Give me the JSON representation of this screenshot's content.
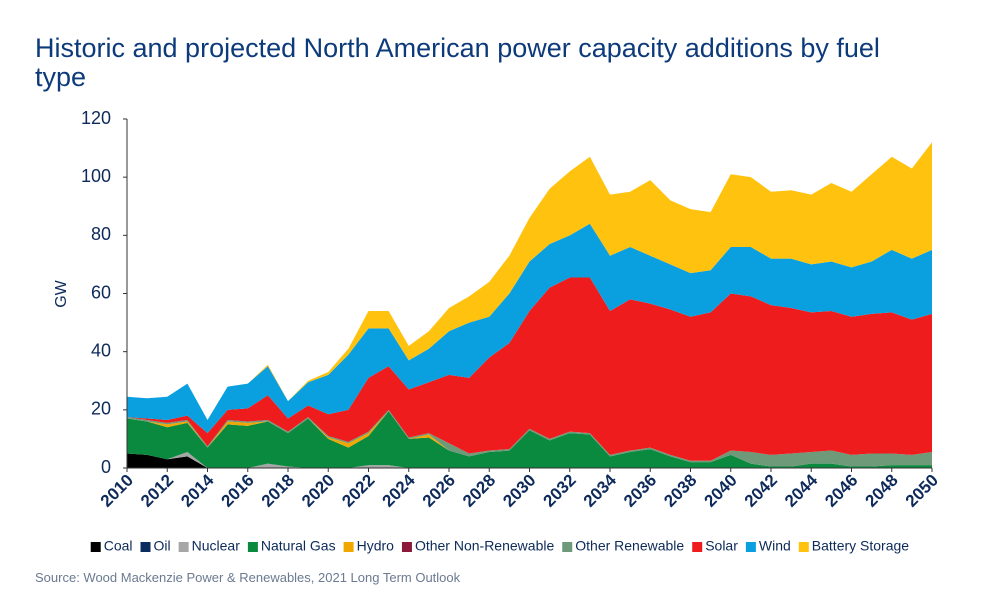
{
  "chart_data": {
    "type": "area",
    "title": "Historic and projected North American power capacity additions by fuel type",
    "y_label": "GW",
    "source": "Source: Wood Mackenzie Power & Renewables, 2021 Long Term Outlook",
    "stacked": true,
    "legend": "bottom",
    "grid": false,
    "x": [
      2010,
      2011,
      2012,
      2013,
      2014,
      2015,
      2016,
      2017,
      2018,
      2019,
      2020,
      2021,
      2022,
      2023,
      2024,
      2025,
      2026,
      2027,
      2028,
      2029,
      2030,
      2031,
      2032,
      2033,
      2034,
      2035,
      2036,
      2037,
      2038,
      2039,
      2040,
      2041,
      2042,
      2043,
      2044,
      2045,
      2046,
      2047,
      2048,
      2049,
      2050
    ],
    "xlim": [
      2010,
      2050
    ],
    "xticks": [
      2010,
      2012,
      2014,
      2016,
      2018,
      2020,
      2022,
      2024,
      2026,
      2028,
      2030,
      2032,
      2034,
      2036,
      2038,
      2040,
      2042,
      2044,
      2046,
      2048,
      2050
    ],
    "ylim": [
      0,
      120
    ],
    "yticks": [
      0,
      20,
      40,
      60,
      80,
      100,
      120
    ],
    "series": [
      {
        "name": "Coal",
        "color": "#000000",
        "values": [
          5,
          4.5,
          3,
          4,
          0,
          0,
          0,
          0,
          0,
          0,
          0,
          0,
          0,
          0,
          0,
          0,
          0,
          0,
          0,
          0,
          0,
          0,
          0,
          0,
          0,
          0,
          0,
          0,
          0,
          0,
          0,
          0,
          0,
          0,
          0,
          0,
          0,
          0,
          0,
          0,
          0
        ]
      },
      {
        "name": "Oil",
        "color": "#0b2c5f",
        "values": [
          0,
          0,
          0,
          0,
          0,
          0,
          0,
          0,
          0,
          0,
          0,
          0,
          0,
          0,
          0,
          0,
          0,
          0,
          0,
          0,
          0,
          0,
          0,
          0,
          0,
          0,
          0,
          0,
          0,
          0,
          0,
          0,
          0,
          0,
          0,
          0,
          0,
          0,
          0,
          0,
          0
        ]
      },
      {
        "name": "Nuclear",
        "color": "#a6a6a6",
        "values": [
          0,
          0,
          0,
          1.5,
          0,
          0,
          0,
          1.5,
          0.5,
          0,
          0,
          0,
          1,
          1,
          0,
          0,
          0,
          0,
          0,
          0,
          0,
          0,
          0,
          0,
          0,
          0,
          0,
          0,
          0,
          0,
          0,
          0,
          0,
          0,
          0,
          0,
          0,
          0,
          0,
          0,
          0
        ]
      },
      {
        "name": "Natural Gas",
        "color": "#0a8a3e",
        "values": [
          12,
          11.5,
          11,
          10,
          7,
          15,
          14.5,
          14.5,
          11.5,
          17,
          10,
          7,
          10,
          18.5,
          10,
          10.5,
          6,
          4,
          5.5,
          6,
          13,
          9.5,
          12,
          11.5,
          4,
          5.5,
          6.5,
          4,
          2,
          2,
          4.5,
          1.5,
          0.5,
          0.5,
          1.5,
          1.5,
          0.5,
          0.5,
          1,
          1,
          1
        ]
      },
      {
        "name": "Hydro",
        "color": "#f0a800",
        "values": [
          0,
          0,
          1,
          0.5,
          0,
          1,
          1,
          0,
          0,
          0,
          0.5,
          1.5,
          1,
          0,
          0,
          1,
          0,
          0,
          0,
          0,
          0,
          0,
          0,
          0,
          0,
          0,
          0,
          0,
          0,
          0,
          0,
          0,
          0,
          0,
          0,
          0,
          0,
          0,
          0,
          0,
          0
        ]
      },
      {
        "name": "Other Non-Renewable",
        "color": "#8b1a3a",
        "values": [
          0,
          0,
          0,
          0,
          0,
          0,
          0,
          0,
          0,
          0,
          0,
          0,
          0,
          0,
          0,
          0,
          0,
          0,
          0,
          0,
          0,
          0,
          0,
          0,
          0,
          0,
          0,
          0,
          0,
          0,
          0,
          0,
          0,
          0,
          0,
          0,
          0,
          0,
          0,
          0,
          0
        ]
      },
      {
        "name": "Other Renewable",
        "color": "#6f9a7a",
        "values": [
          0.5,
          0.5,
          0.5,
          0.5,
          0.5,
          0.5,
          0.5,
          0.5,
          0.5,
          0.5,
          0.5,
          0.5,
          0.5,
          0.5,
          0.5,
          0.5,
          2.5,
          1,
          0.5,
          0.5,
          0.5,
          0.5,
          0.5,
          0.5,
          0.5,
          0.5,
          0.5,
          0.5,
          0.5,
          0.5,
          1.5,
          4,
          4,
          4.5,
          4,
          4.5,
          4,
          4.5,
          4,
          3.5,
          4.5
        ]
      },
      {
        "name": "Solar",
        "color": "#ee1c1c",
        "values": [
          0,
          0.5,
          1,
          1.5,
          4.5,
          3.5,
          4.5,
          8.5,
          4.5,
          4,
          7.5,
          11,
          18.5,
          15,
          16.5,
          17.5,
          23.5,
          26,
          32,
          36.5,
          40.5,
          52,
          53,
          53.5,
          49.5,
          52,
          49.5,
          50,
          49.5,
          51,
          54,
          53.5,
          51.5,
          50,
          48,
          48,
          47.5,
          48,
          48.5,
          46.5,
          47.5
        ]
      },
      {
        "name": "Wind",
        "color": "#0aa0e0",
        "values": [
          7,
          7,
          8,
          11,
          4.5,
          8,
          8.5,
          10,
          6,
          8,
          13.5,
          19,
          17,
          13,
          10,
          11.5,
          15,
          19,
          14,
          17,
          17,
          15,
          14.5,
          18.5,
          19,
          18,
          16.5,
          15.5,
          15,
          14.5,
          16,
          17,
          16,
          17,
          16.5,
          17,
          17,
          18,
          21.5,
          21,
          22
        ]
      },
      {
        "name": "Battery Storage",
        "color": "#ffc20e",
        "values": [
          0,
          0,
          0,
          0,
          0,
          0,
          0,
          0.5,
          0,
          0.5,
          1,
          2,
          6,
          6,
          5,
          6,
          8,
          9,
          12,
          13,
          15,
          19,
          22,
          23,
          21,
          19,
          26,
          22,
          22,
          20,
          25,
          24,
          23,
          23.5,
          24,
          27,
          26,
          30,
          32,
          31,
          37
        ]
      }
    ]
  }
}
